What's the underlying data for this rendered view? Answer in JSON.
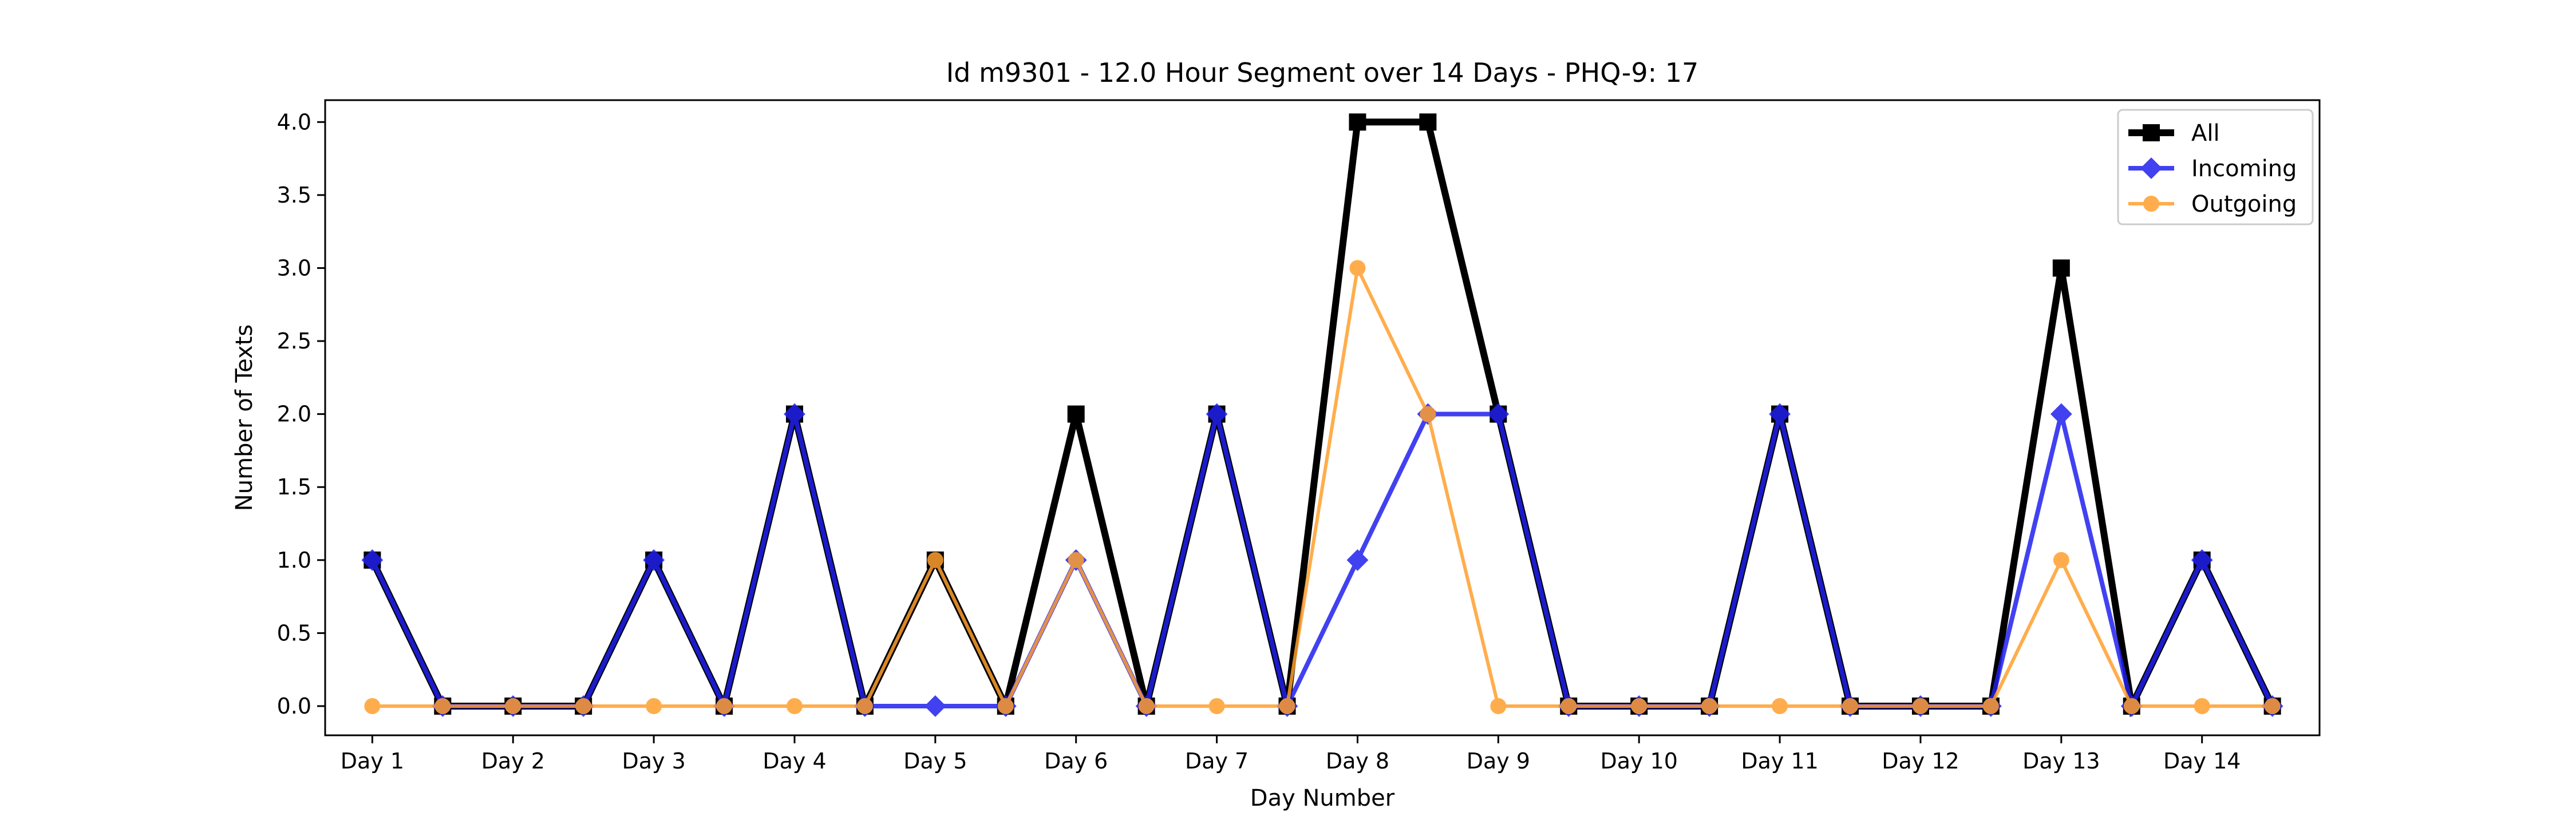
{
  "chart_data": {
    "type": "line",
    "title": "Id m9301 - 12.0 Hour Segment over 14 Days - PHQ-9: 17",
    "xlabel": "Day Number",
    "ylabel": "Number of Texts",
    "ylim": [
      -0.2,
      4.15
    ],
    "yticks": [
      "0.0",
      "0.5",
      "1.0",
      "1.5",
      "2.0",
      "2.5",
      "3.0",
      "3.5",
      "4.0"
    ],
    "ytick_values": [
      0,
      0.5,
      1,
      1.5,
      2,
      2.5,
      3,
      3.5,
      4
    ],
    "x_tick_labels": [
      "Day 1",
      "Day 2",
      "Day 3",
      "Day 4",
      "Day 5",
      "Day 6",
      "Day 7",
      "Day 8",
      "Day 9",
      "Day 10",
      "Day 11",
      "Day 12",
      "Day 13",
      "Day 14"
    ],
    "x": [
      1,
      1.5,
      2,
      2.5,
      3,
      3.5,
      4,
      4.5,
      5,
      5.5,
      6,
      6.5,
      7,
      7.5,
      8,
      8.5,
      9,
      9.5,
      10,
      10.5,
      11,
      11.5,
      12,
      12.5,
      13,
      13.5,
      14,
      14.5
    ],
    "grid": false,
    "legend_position": "top-right",
    "series": [
      {
        "name": "All",
        "color": "#000000",
        "marker": "square",
        "values": [
          1,
          0,
          0,
          0,
          1,
          0,
          2,
          0,
          1,
          0,
          2,
          0,
          2,
          0,
          4,
          4,
          2,
          0,
          0,
          0,
          2,
          0,
          0,
          0,
          3,
          0,
          1,
          0
        ]
      },
      {
        "name": "Incoming",
        "color": "#2020ee",
        "marker": "diamond",
        "values": [
          1,
          0,
          0,
          0,
          1,
          0,
          2,
          0,
          0,
          0,
          1,
          0,
          2,
          0,
          1,
          2,
          2,
          0,
          0,
          0,
          2,
          0,
          0,
          0,
          2,
          0,
          1,
          0
        ]
      },
      {
        "name": "Outgoing",
        "color": "#ff9f2d",
        "marker": "circle",
        "values": [
          0,
          0,
          0,
          0,
          0,
          0,
          0,
          0,
          1,
          0,
          1,
          0,
          0,
          0,
          3,
          2,
          0,
          0,
          0,
          0,
          0,
          0,
          0,
          0,
          1,
          0,
          0,
          0
        ]
      }
    ]
  }
}
